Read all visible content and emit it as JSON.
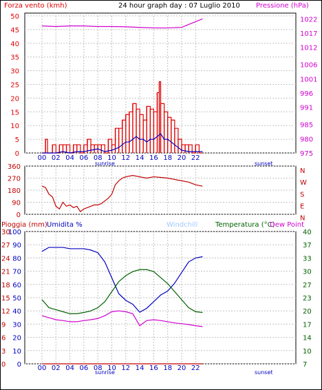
{
  "title": "24 hour graph day : 07 Luglio 2010",
  "colors": {
    "wind": "#e00000",
    "gust": "#e00000",
    "avgwind": "#0000c0",
    "pressure": "#d000d0",
    "direction": "#c00000",
    "rain": "#c00000",
    "humidity": "#0000c0",
    "windchill": "#a0c8ff",
    "temperature": "#006000",
    "dewpoint": "#d000d0",
    "grid": "#c0c0c0"
  },
  "x_ticks": [
    "00",
    "02",
    "04",
    "06",
    "08",
    "10",
    "12",
    "14",
    "16",
    "18",
    "20",
    "22"
  ],
  "sun_labels": {
    "sunrise": "sunrise",
    "sunset": "sunset"
  },
  "chart_data": [
    {
      "type": "line",
      "name": "wind-pressure",
      "left_axis_label": "Forza vento (kmh)",
      "right_axis_label": "Pressione (hPa)",
      "left_ticks": [
        "0",
        "5",
        "10",
        "15",
        "20",
        "25",
        "30",
        "35",
        "40",
        "45",
        "50"
      ],
      "right_ticks": [
        "975",
        "980",
        "985",
        "991",
        "996",
        "1001",
        "1006",
        "1012",
        "1017",
        "1022"
      ],
      "ylim_left": [
        0,
        50
      ],
      "ylim_right": [
        975,
        1024
      ],
      "series": [
        {
          "axis": "left",
          "style": "gust",
          "x": [
            0,
            0.5,
            0.8,
            1.0,
            1.5,
            2.0,
            2.5,
            3.0,
            3.5,
            4.0,
            4.5,
            5.0,
            5.5,
            6.0,
            6.5,
            7.0,
            7.5,
            8.0,
            8.5,
            9.0,
            9.5,
            10.0,
            10.5,
            11.0,
            11.5,
            12.0,
            12.5,
            13.0,
            13.5,
            14.0,
            14.5,
            15.0,
            15.5,
            16.0,
            16.5,
            16.8,
            17.0,
            17.5,
            18.0,
            18.5,
            19.0,
            19.5,
            20.0,
            20.5,
            21.0,
            21.5,
            22.0,
            22.5,
            23.0
          ],
          "y": [
            0,
            5,
            0,
            0,
            3,
            0,
            3,
            3,
            3,
            0,
            3,
            3,
            0,
            3,
            5,
            3,
            3,
            3,
            3,
            0,
            5,
            3,
            9,
            9,
            12,
            14,
            15,
            18,
            16,
            14,
            12,
            17,
            16,
            15,
            22,
            26,
            18,
            15,
            13,
            12,
            9,
            5,
            3,
            3,
            3,
            0,
            3,
            0,
            0
          ]
        },
        {
          "axis": "left",
          "style": "avg",
          "x": [
            0,
            1,
            2,
            3,
            4,
            5,
            6,
            7,
            8,
            9,
            10,
            10.5,
            11,
            11.5,
            12,
            12.5,
            13,
            13.5,
            14,
            14.5,
            15,
            15.5,
            16,
            16.5,
            17,
            17.5,
            18,
            18.5,
            19,
            19.5,
            20,
            21,
            22,
            23
          ],
          "y": [
            0,
            0,
            0,
            0.5,
            0,
            0.5,
            0.5,
            1,
            1.5,
            0.5,
            1,
            1.5,
            2,
            3,
            4,
            4,
            5,
            6,
            5,
            5,
            4,
            5,
            5,
            6,
            7,
            5,
            5,
            4,
            3,
            2,
            1,
            0.5,
            0.5,
            0.5
          ]
        },
        {
          "axis": "right",
          "style": "pressure",
          "x": [
            0,
            2,
            4,
            6,
            8,
            10,
            12,
            14,
            16,
            18,
            20,
            21,
            22,
            23
          ],
          "y": [
            1019.5,
            1019.3,
            1019.5,
            1019.5,
            1019.3,
            1019.3,
            1019.2,
            1019.0,
            1018.8,
            1018.8,
            1019.0,
            1020,
            1021,
            1022
          ]
        }
      ]
    },
    {
      "type": "line",
      "name": "wind-direction",
      "left_ticks": [
        "0",
        "90",
        "180",
        "270",
        "360"
      ],
      "right_ticks": [
        "N",
        "E",
        "S",
        "W",
        "N"
      ],
      "ylim": [
        0,
        360
      ],
      "series": [
        {
          "style": "direction",
          "x": [
            0,
            0.5,
            1,
            1.5,
            2,
            2.5,
            3,
            3.5,
            4,
            4.5,
            5,
            5.5,
            6,
            6.5,
            7,
            7.5,
            8,
            8.5,
            9,
            9.5,
            10,
            10.5,
            11,
            11.5,
            12,
            13,
            14,
            15,
            16,
            17,
            18,
            19,
            20,
            21,
            22,
            23
          ],
          "y": [
            210,
            200,
            150,
            130,
            60,
            40,
            90,
            60,
            70,
            50,
            60,
            20,
            40,
            50,
            60,
            70,
            70,
            80,
            100,
            120,
            150,
            220,
            250,
            270,
            280,
            290,
            280,
            270,
            280,
            275,
            270,
            260,
            250,
            240,
            220,
            210
          ]
        }
      ]
    },
    {
      "type": "line",
      "name": "humidity-temperature",
      "labels": {
        "rain": "Pioggia (mm)",
        "humidity": "Umidita %",
        "windchill": "Windchill",
        "temperature": "Temperatura (°C)",
        "dewpoint": "Dew Point"
      },
      "left_ticks_rain": [
        "0",
        "3",
        "6",
        "9",
        "12",
        "15",
        "18",
        "21",
        "24",
        "27",
        "30"
      ],
      "left_ticks_hum": [
        "0",
        "10",
        "20",
        "30",
        "40",
        "50",
        "60",
        "70",
        "80",
        "90",
        "100"
      ],
      "right_ticks": [
        "7",
        "10",
        "14",
        "17",
        "20",
        "23",
        "27",
        "30",
        "33",
        "37",
        "40"
      ],
      "ylim_humidity": [
        0,
        100
      ],
      "ylim_temp": [
        7,
        40
      ],
      "series": [
        {
          "style": "humidity",
          "x": [
            0,
            1,
            2,
            3,
            4,
            5,
            6,
            7,
            8,
            9,
            10,
            11,
            12,
            13,
            14,
            15,
            16,
            17,
            18,
            19,
            20,
            21,
            22,
            23
          ],
          "y": [
            85,
            88,
            88,
            88,
            87,
            87,
            87,
            86,
            84,
            77,
            65,
            53,
            48,
            45,
            39,
            42,
            47,
            52,
            55,
            61,
            69,
            77,
            80,
            81
          ]
        },
        {
          "style": "temperature",
          "x": [
            0,
            1,
            2,
            3,
            4,
            5,
            6,
            7,
            8,
            9,
            10,
            11,
            12,
            13,
            14,
            15,
            16,
            17,
            18,
            19,
            20,
            21,
            22,
            23
          ],
          "y": [
            23,
            21,
            20.5,
            20,
            19.5,
            19.5,
            19.8,
            20.2,
            21,
            22.5,
            25,
            27.5,
            29,
            30,
            30.5,
            30.5,
            30,
            28.5,
            27,
            25,
            23,
            21,
            20,
            19.8
          ]
        },
        {
          "style": "dewpoint",
          "x": [
            0,
            1,
            2,
            3,
            4,
            5,
            6,
            7,
            8,
            9,
            10,
            11,
            12,
            13,
            14,
            15,
            16,
            17,
            18,
            19,
            20,
            21,
            22,
            23
          ],
          "y": [
            19,
            18.5,
            18,
            17.8,
            17.5,
            17.5,
            17.8,
            18,
            18.3,
            19,
            20,
            20.2,
            20,
            19.5,
            16.5,
            17.8,
            18,
            17.8,
            17.5,
            17.2,
            17,
            16.8,
            16.5,
            16.3
          ]
        },
        {
          "style": "rain",
          "x": [
            0,
            23
          ],
          "y": [
            0,
            0
          ]
        }
      ]
    }
  ]
}
